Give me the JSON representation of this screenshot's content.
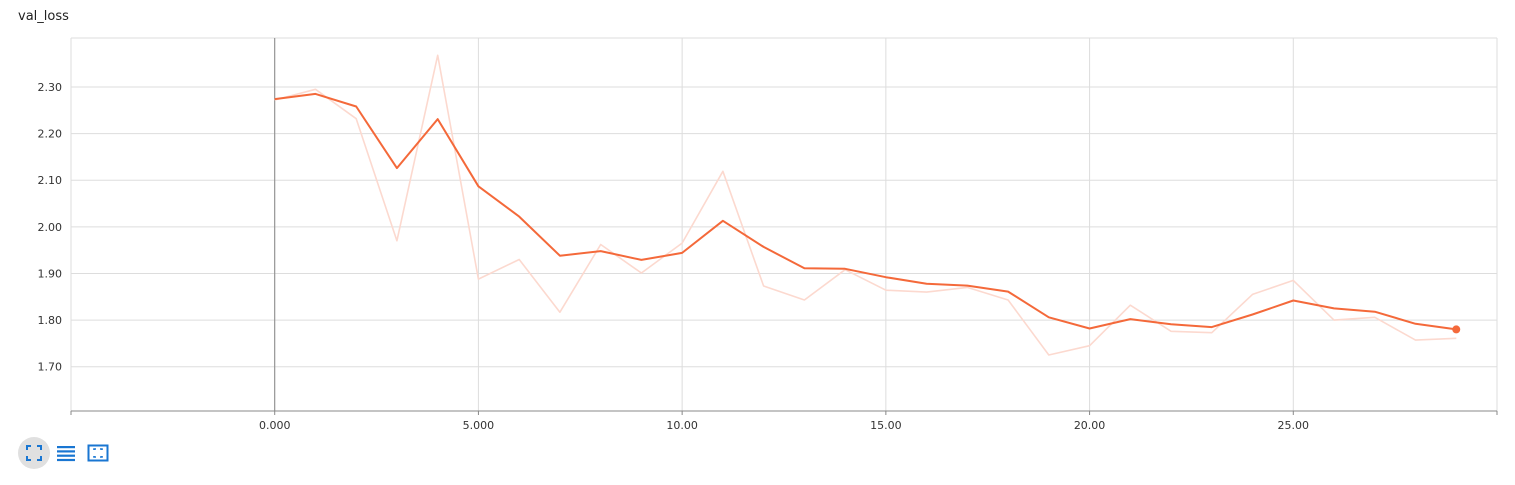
{
  "card": {
    "title": "val_loss"
  },
  "colors": {
    "smoothed": "#f4693a",
    "raw": "#fcd9cf",
    "grid": "#dddddd",
    "axis": "#888888",
    "icon": "#1976d2"
  },
  "toolbar": {
    "buttons": [
      {
        "name": "expand-chart-button",
        "icon": "fullscreen-icon",
        "active": true
      },
      {
        "name": "toggle-log-scale-button",
        "icon": "list-icon",
        "active": false
      },
      {
        "name": "fit-domain-button",
        "icon": "fit-to-data-icon",
        "active": false
      }
    ]
  },
  "chart_data": {
    "type": "line",
    "title": "val_loss",
    "xlabel": "",
    "ylabel": "",
    "xlim": [
      -5.0,
      30.0
    ],
    "ylim": [
      1.605,
      2.405
    ],
    "x_ticks": [
      0,
      5,
      10,
      15,
      20,
      25
    ],
    "x_tick_labels": [
      "0.000",
      "5.000",
      "10.00",
      "15.00",
      "20.00",
      "25.00"
    ],
    "y_ticks": [
      1.7,
      1.8,
      1.9,
      2.0,
      2.1,
      2.2,
      2.3
    ],
    "y_tick_labels": [
      "1.70",
      "1.80",
      "1.90",
      "2.00",
      "2.10",
      "2.20",
      "2.30"
    ],
    "grid": true,
    "series": [
      {
        "role": "raw",
        "x": [
          0,
          1,
          2,
          3,
          4,
          5,
          6,
          7,
          8,
          9,
          10,
          11,
          12,
          13,
          14,
          15,
          16,
          17,
          18,
          19,
          20,
          21,
          22,
          23,
          24,
          25,
          26,
          27,
          28,
          29
        ],
        "y": [
          2.272,
          2.295,
          2.232,
          1.97,
          2.368,
          1.888,
          1.93,
          1.817,
          1.962,
          1.901,
          1.965,
          2.119,
          1.873,
          1.843,
          1.908,
          1.864,
          1.86,
          1.87,
          1.843,
          1.725,
          1.745,
          1.832,
          1.776,
          1.773,
          1.855,
          1.885,
          1.8,
          1.806,
          1.757,
          1.761
        ]
      },
      {
        "role": "smoothed",
        "x": [
          0,
          1,
          2,
          3,
          4,
          5,
          6,
          7,
          8,
          9,
          10,
          11,
          12,
          13,
          14,
          15,
          16,
          17,
          18,
          19,
          20,
          21,
          22,
          23,
          24,
          25,
          26,
          27,
          28,
          29
        ],
        "y": [
          2.274,
          2.285,
          2.258,
          2.126,
          2.231,
          2.087,
          2.022,
          1.938,
          1.948,
          1.929,
          1.944,
          2.013,
          1.957,
          1.911,
          1.91,
          1.892,
          1.878,
          1.874,
          1.861,
          1.806,
          1.782,
          1.802,
          1.791,
          1.785,
          1.812,
          1.842,
          1.825,
          1.818,
          1.792,
          1.78
        ]
      }
    ]
  }
}
